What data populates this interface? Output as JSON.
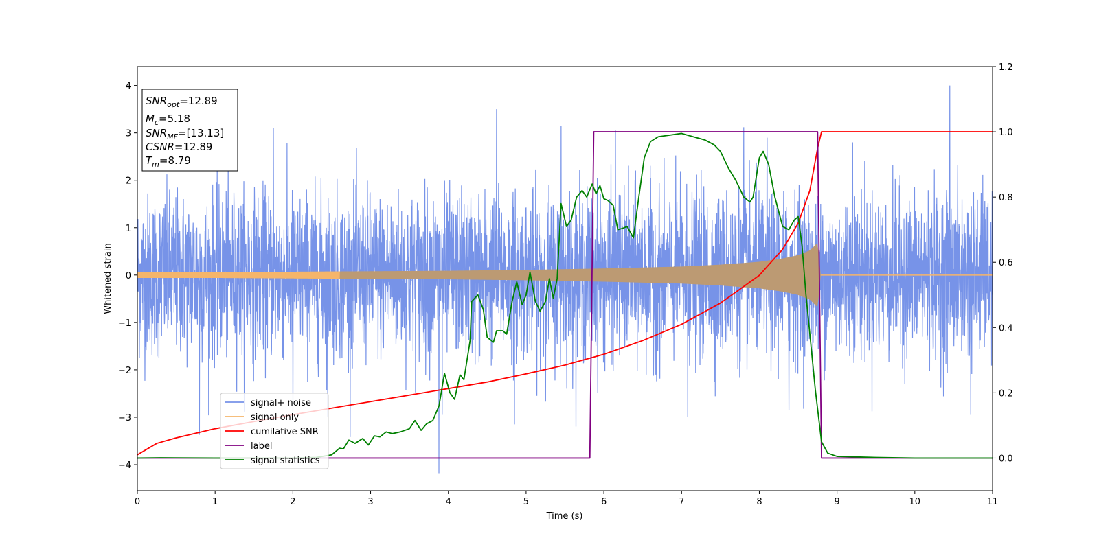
{
  "chart_data": {
    "type": "line",
    "xlabel": "Time (s)",
    "ylabel_left": "Whitened strain",
    "ylabel_right": "",
    "xlim": [
      0,
      11
    ],
    "ylim_left": [
      -4.55,
      4.4
    ],
    "ylim_right": [
      -0.1,
      1.2
    ],
    "x_ticks": [
      0,
      1,
      2,
      3,
      4,
      5,
      6,
      7,
      8,
      9,
      10,
      11
    ],
    "y_ticks_left": [
      -4,
      -3,
      -2,
      -1,
      0,
      1,
      2,
      3,
      4
    ],
    "y_ticks_right": [
      0.0,
      0.2,
      0.4,
      0.6,
      0.8,
      1.0,
      1.2
    ],
    "grid": false,
    "legend_position": "lower-left",
    "stats_box": {
      "snr_opt": {
        "label": "SNR",
        "sub": "opt",
        "value": "=12.89"
      },
      "mc": {
        "label": "M",
        "sub": "c",
        "value": "=5.18"
      },
      "snr_mf": {
        "label": "SNR",
        "sub": "MF",
        "value": "=[13.13]"
      },
      "csnr": {
        "label": "CSNR",
        "sub": "",
        "value": "=12.89"
      },
      "tm": {
        "label": "T",
        "sub": "m",
        "value": "=8.79"
      }
    },
    "series": [
      {
        "name": "signal+ noise",
        "axis": "left",
        "color": "#7793e8",
        "envelope_std": 0.85,
        "outlier_peaks": [
          [
            0.8,
            -3.37
          ],
          [
            1.75,
            3.1
          ],
          [
            2.0,
            -3.05
          ],
          [
            2.45,
            -3.0
          ],
          [
            3.88,
            -4.18
          ],
          [
            3.92,
            -2.95
          ],
          [
            4.62,
            3.5
          ],
          [
            4.85,
            -3.15
          ],
          [
            5.45,
            3.15
          ],
          [
            6.15,
            3.05
          ],
          [
            7.08,
            -3.0
          ],
          [
            7.8,
            3.12
          ],
          [
            8.1,
            2.9
          ],
          [
            8.38,
            -2.85
          ],
          [
            9.2,
            2.8
          ],
          [
            10.45,
            4.0
          ],
          [
            10.72,
            -2.95
          ]
        ]
      },
      {
        "name": "signal only",
        "axis": "left",
        "color": "#f5b56a",
        "fill_color": "#bc9a73",
        "amplitude_points": [
          [
            0.0,
            0.06
          ],
          [
            1.0,
            0.06
          ],
          [
            2.0,
            0.07
          ],
          [
            3.0,
            0.08
          ],
          [
            4.0,
            0.09
          ],
          [
            5.0,
            0.11
          ],
          [
            6.0,
            0.14
          ],
          [
            7.0,
            0.18
          ],
          [
            7.5,
            0.22
          ],
          [
            8.0,
            0.28
          ],
          [
            8.3,
            0.35
          ],
          [
            8.5,
            0.42
          ],
          [
            8.65,
            0.52
          ],
          [
            8.75,
            0.68
          ],
          [
            8.79,
            0.0
          ],
          [
            11.0,
            0.0
          ]
        ]
      },
      {
        "name": "cumilative SNR",
        "axis": "right",
        "color": "#ff0000",
        "points": [
          [
            0.0,
            0.01
          ],
          [
            0.25,
            0.045
          ],
          [
            0.5,
            0.062
          ],
          [
            1.0,
            0.09
          ],
          [
            1.5,
            0.112
          ],
          [
            2.0,
            0.133
          ],
          [
            2.5,
            0.153
          ],
          [
            3.0,
            0.173
          ],
          [
            3.5,
            0.193
          ],
          [
            4.0,
            0.213
          ],
          [
            4.5,
            0.233
          ],
          [
            5.0,
            0.258
          ],
          [
            5.5,
            0.285
          ],
          [
            6.0,
            0.318
          ],
          [
            6.5,
            0.36
          ],
          [
            7.0,
            0.41
          ],
          [
            7.5,
            0.475
          ],
          [
            8.0,
            0.56
          ],
          [
            8.3,
            0.64
          ],
          [
            8.5,
            0.72
          ],
          [
            8.65,
            0.82
          ],
          [
            8.75,
            0.95
          ],
          [
            8.8,
            1.0
          ],
          [
            11.0,
            1.0
          ]
        ]
      },
      {
        "name": "label",
        "axis": "right",
        "color": "#800080",
        "points": [
          [
            0.0,
            0.0
          ],
          [
            5.82,
            0.0
          ],
          [
            5.87,
            1.0
          ],
          [
            8.75,
            1.0
          ],
          [
            8.8,
            0.0
          ],
          [
            11.0,
            0.0
          ]
        ]
      },
      {
        "name": "signal statistics",
        "axis": "right",
        "color": "#008000",
        "points": [
          [
            0.0,
            0.0
          ],
          [
            0.3,
            0.001
          ],
          [
            1.0,
            0.0
          ],
          [
            2.0,
            0.0
          ],
          [
            2.3,
            0.002
          ],
          [
            2.5,
            0.01
          ],
          [
            2.6,
            0.03
          ],
          [
            2.65,
            0.028
          ],
          [
            2.72,
            0.055
          ],
          [
            2.8,
            0.045
          ],
          [
            2.9,
            0.06
          ],
          [
            2.97,
            0.04
          ],
          [
            3.05,
            0.068
          ],
          [
            3.12,
            0.065
          ],
          [
            3.2,
            0.08
          ],
          [
            3.28,
            0.075
          ],
          [
            3.38,
            0.08
          ],
          [
            3.5,
            0.09
          ],
          [
            3.57,
            0.115
          ],
          [
            3.65,
            0.085
          ],
          [
            3.72,
            0.105
          ],
          [
            3.8,
            0.115
          ],
          [
            3.88,
            0.16
          ],
          [
            3.95,
            0.26
          ],
          [
            4.02,
            0.2
          ],
          [
            4.08,
            0.18
          ],
          [
            4.15,
            0.255
          ],
          [
            4.2,
            0.24
          ],
          [
            4.28,
            0.36
          ],
          [
            4.3,
            0.48
          ],
          [
            4.38,
            0.5
          ],
          [
            4.45,
            0.455
          ],
          [
            4.5,
            0.37
          ],
          [
            4.58,
            0.355
          ],
          [
            4.62,
            0.39
          ],
          [
            4.7,
            0.39
          ],
          [
            4.75,
            0.38
          ],
          [
            4.82,
            0.48
          ],
          [
            4.88,
            0.54
          ],
          [
            4.95,
            0.47
          ],
          [
            5.0,
            0.5
          ],
          [
            5.05,
            0.57
          ],
          [
            5.12,
            0.48
          ],
          [
            5.18,
            0.45
          ],
          [
            5.25,
            0.48
          ],
          [
            5.3,
            0.55
          ],
          [
            5.35,
            0.49
          ],
          [
            5.4,
            0.55
          ],
          [
            5.45,
            0.78
          ],
          [
            5.52,
            0.71
          ],
          [
            5.58,
            0.73
          ],
          [
            5.65,
            0.8
          ],
          [
            5.72,
            0.82
          ],
          [
            5.78,
            0.8
          ],
          [
            5.85,
            0.84
          ],
          [
            5.9,
            0.81
          ],
          [
            5.95,
            0.835
          ],
          [
            6.0,
            0.795
          ],
          [
            6.05,
            0.79
          ],
          [
            6.12,
            0.775
          ],
          [
            6.18,
            0.7
          ],
          [
            6.25,
            0.705
          ],
          [
            6.3,
            0.71
          ],
          [
            6.38,
            0.675
          ],
          [
            6.45,
            0.8
          ],
          [
            6.52,
            0.92
          ],
          [
            6.6,
            0.97
          ],
          [
            6.7,
            0.985
          ],
          [
            6.85,
            0.99
          ],
          [
            7.0,
            0.995
          ],
          [
            7.15,
            0.985
          ],
          [
            7.3,
            0.975
          ],
          [
            7.42,
            0.96
          ],
          [
            7.5,
            0.94
          ],
          [
            7.6,
            0.89
          ],
          [
            7.7,
            0.85
          ],
          [
            7.8,
            0.8
          ],
          [
            7.88,
            0.785
          ],
          [
            7.92,
            0.8
          ],
          [
            8.0,
            0.92
          ],
          [
            8.05,
            0.94
          ],
          [
            8.12,
            0.9
          ],
          [
            8.2,
            0.8
          ],
          [
            8.3,
            0.71
          ],
          [
            8.38,
            0.7
          ],
          [
            8.45,
            0.73
          ],
          [
            8.5,
            0.74
          ],
          [
            8.55,
            0.65
          ],
          [
            8.6,
            0.5
          ],
          [
            8.65,
            0.38
          ],
          [
            8.72,
            0.21
          ],
          [
            8.8,
            0.05
          ],
          [
            8.88,
            0.015
          ],
          [
            9.0,
            0.005
          ],
          [
            9.5,
            0.002
          ],
          [
            10.0,
            0.0
          ],
          [
            11.0,
            0.0
          ]
        ]
      }
    ]
  }
}
